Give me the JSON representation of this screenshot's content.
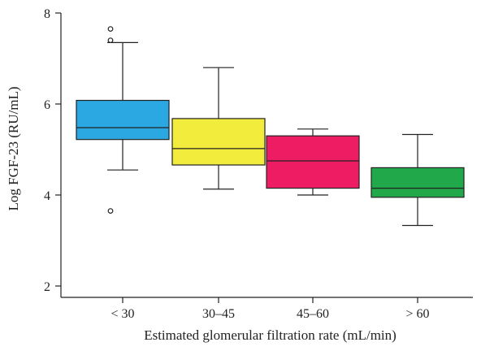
{
  "chart_data": {
    "type": "box",
    "xlabel": "Estimated glomerular filtration rate (mL/min)",
    "ylabel": "Log FGF-23 (RU/mL)",
    "ylim": [
      2,
      8
    ],
    "yticks": [
      "2",
      "4",
      "6",
      "8"
    ],
    "grid": false,
    "categories": [
      "< 30",
      "30–45",
      "45–60",
      "> 60"
    ],
    "boxes": [
      {
        "category": "< 30",
        "whisker_low": 4.55,
        "q1": 5.22,
        "median": 5.48,
        "q3": 6.08,
        "whisker_high": 7.35,
        "outliers": [
          3.65,
          7.4,
          7.65
        ],
        "color": "#2ba7e2"
      },
      {
        "category": "30–45",
        "whisker_low": 4.13,
        "q1": 4.66,
        "median": 5.02,
        "q3": 5.68,
        "whisker_high": 6.8,
        "outliers": [],
        "color": "#f2ec3c"
      },
      {
        "category": "45–60",
        "whisker_low": 4.0,
        "q1": 4.15,
        "median": 4.75,
        "q3": 5.3,
        "whisker_high": 5.45,
        "outliers": [],
        "color": "#ee1c63"
      },
      {
        "category": "> 60",
        "whisker_low": 3.33,
        "q1": 3.95,
        "median": 4.15,
        "q3": 4.6,
        "whisker_high": 5.33,
        "outliers": [],
        "color": "#21a84a"
      }
    ]
  }
}
